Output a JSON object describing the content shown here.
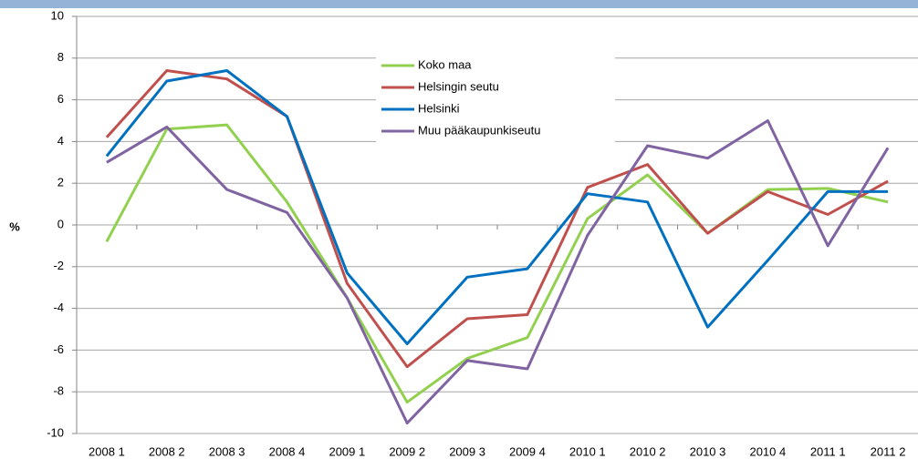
{
  "chart_data": {
    "type": "line",
    "ylabel": "%",
    "categories": [
      "2008 1",
      "2008 2",
      "2008 3",
      "2008 4",
      "2009 1",
      "2009 2",
      "2009 3",
      "2009 4",
      "2010 1",
      "2010 2",
      "2010 3",
      "2010 4",
      "2011 1",
      "2011 2"
    ],
    "series": [
      {
        "name": "Koko maa",
        "color": "#92d050",
        "values": [
          -0.8,
          4.6,
          4.8,
          1.1,
          -3.5,
          -8.5,
          -6.4,
          -5.4,
          0.3,
          2.4,
          -0.4,
          1.7,
          1.75,
          1.1
        ]
      },
      {
        "name": "Helsingin seutu",
        "color": "#c0504d",
        "values": [
          4.2,
          7.4,
          7.0,
          5.2,
          -2.8,
          -6.8,
          -4.5,
          -4.3,
          1.8,
          2.9,
          -0.4,
          1.6,
          0.5,
          2.1
        ]
      },
      {
        "name": "Helsinki",
        "color": "#0070c0",
        "values": [
          3.3,
          6.9,
          7.4,
          5.2,
          -2.3,
          -5.7,
          -2.5,
          -2.1,
          1.5,
          1.1,
          -4.9,
          -1.7,
          1.6,
          1.6
        ]
      },
      {
        "name": "Muu pääkaupunkiseutu",
        "color": "#8064a2",
        "values": [
          3.0,
          4.7,
          1.7,
          0.6,
          -3.5,
          -9.5,
          -6.5,
          -6.9,
          -0.5,
          3.8,
          3.2,
          5.0,
          -1.0,
          3.7
        ]
      }
    ],
    "ylim": [
      -10,
      10
    ],
    "yticks": [
      -10,
      -8,
      -6,
      -4,
      -2,
      0,
      2,
      4,
      6,
      8,
      10
    ],
    "grid": true,
    "legend": "upper center"
  }
}
